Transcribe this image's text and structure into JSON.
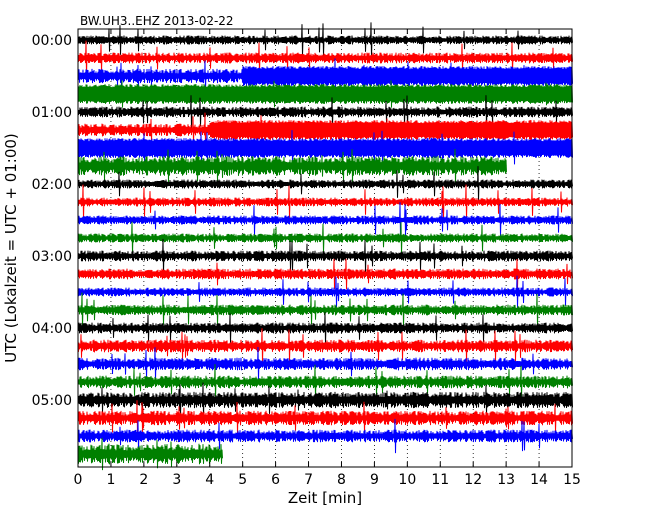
{
  "chart_data": {
    "type": "line",
    "title": "BW.UH3..EHZ 2013-02-22",
    "xlabel": "Zeit  [min]",
    "ylabel": "UTC (Lokalzeit = UTC + 01:00)",
    "xlim": [
      0,
      15
    ],
    "x_ticks": [
      "0",
      "1",
      "2",
      "3",
      "4",
      "5",
      "6",
      "7",
      "8",
      "9",
      "10",
      "11",
      "12",
      "13",
      "14",
      "15"
    ],
    "y_ticks": [
      "00:00",
      "01:00",
      "02:00",
      "03:00",
      "04:00",
      "05:00"
    ],
    "grid": "vertical-dotted",
    "colors": [
      "#000000",
      "#ff0000",
      "#0000ff",
      "#008000"
    ],
    "traces": [
      {
        "start": "00:00",
        "color": "#000000",
        "end_min": 15,
        "amplitude": 0.25,
        "strong_from": null
      },
      {
        "start": "00:15",
        "color": "#ff0000",
        "end_min": 15,
        "amplitude": 0.3,
        "strong_from": null
      },
      {
        "start": "00:30",
        "color": "#0000ff",
        "end_min": 15,
        "amplitude": 0.4,
        "strong_from": 5
      },
      {
        "start": "00:45",
        "color": "#008000",
        "end_min": 15,
        "amplitude": 0.75,
        "strong_from": 0
      },
      {
        "start": "01:00",
        "color": "#000000",
        "end_min": 15,
        "amplitude": 0.3,
        "strong_from": null
      },
      {
        "start": "01:15",
        "color": "#ff0000",
        "end_min": 15,
        "amplitude": 0.35,
        "strong_from": 4
      },
      {
        "start": "01:30",
        "color": "#0000ff",
        "end_min": 15,
        "amplitude": 0.7,
        "strong_from": 0
      },
      {
        "start": "01:45",
        "color": "#008000",
        "end_min": 13,
        "amplitude": 0.55,
        "strong_from": null
      },
      {
        "start": "02:00",
        "color": "#000000",
        "end_min": 15,
        "amplitude": 0.25,
        "strong_from": null
      },
      {
        "start": "02:15",
        "color": "#ff0000",
        "end_min": 15,
        "amplitude": 0.25,
        "strong_from": null
      },
      {
        "start": "02:30",
        "color": "#0000ff",
        "end_min": 15,
        "amplitude": 0.25,
        "strong_from": null
      },
      {
        "start": "02:45",
        "color": "#008000",
        "end_min": 15,
        "amplitude": 0.25,
        "strong_from": null
      },
      {
        "start": "03:00",
        "color": "#000000",
        "end_min": 15,
        "amplitude": 0.3,
        "strong_from": null
      },
      {
        "start": "03:15",
        "color": "#ff0000",
        "end_min": 15,
        "amplitude": 0.3,
        "strong_from": null
      },
      {
        "start": "03:30",
        "color": "#0000ff",
        "end_min": 15,
        "amplitude": 0.25,
        "strong_from": null
      },
      {
        "start": "03:45",
        "color": "#008000",
        "end_min": 15,
        "amplitude": 0.3,
        "strong_from": null
      },
      {
        "start": "04:00",
        "color": "#000000",
        "end_min": 15,
        "amplitude": 0.3,
        "strong_from": null
      },
      {
        "start": "04:15",
        "color": "#ff0000",
        "end_min": 15,
        "amplitude": 0.35,
        "strong_from": null
      },
      {
        "start": "04:30",
        "color": "#0000ff",
        "end_min": 15,
        "amplitude": 0.35,
        "strong_from": null
      },
      {
        "start": "04:45",
        "color": "#008000",
        "end_min": 15,
        "amplitude": 0.35,
        "strong_from": null
      },
      {
        "start": "05:00",
        "color": "#000000",
        "end_min": 15,
        "amplitude": 0.45,
        "strong_from": null
      },
      {
        "start": "05:15",
        "color": "#ff0000",
        "end_min": 15,
        "amplitude": 0.4,
        "strong_from": null
      },
      {
        "start": "05:30",
        "color": "#0000ff",
        "end_min": 15,
        "amplitude": 0.35,
        "strong_from": null
      },
      {
        "start": "05:45",
        "color": "#008000",
        "end_min": 4.4,
        "amplitude": 0.55,
        "strong_from": null
      }
    ]
  }
}
